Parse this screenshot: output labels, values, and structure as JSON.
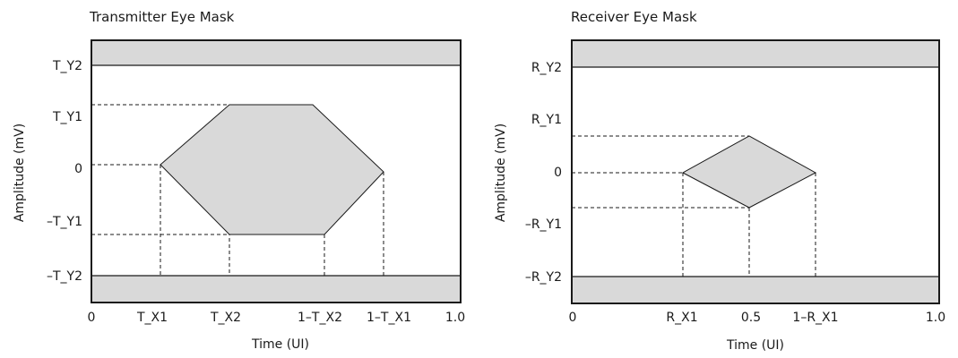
{
  "colors": {
    "mask_fill": "#d9d9d9",
    "line": "#1a1a1a",
    "background": "#ffffff"
  },
  "transmitter": {
    "title": "Transmitter Eye Mask",
    "xlabel": "Time (UI)",
    "ylabel": "Amplitude (mV)",
    "y_ticks": [
      "T_Y2",
      "T_Y1",
      "0",
      "–T_Y1",
      "–T_Y2"
    ],
    "x_ticks": [
      "0",
      "T_X1",
      "T_X2",
      "1–T_X2",
      "1–T_X1",
      "1.0"
    ]
  },
  "receiver": {
    "title": "Receiver Eye Mask",
    "xlabel": "Time (UI)",
    "ylabel": "Amplitude (mV)",
    "y_ticks": [
      "R_Y2",
      "R_Y1",
      "0",
      "–R_Y1",
      "–R_Y2"
    ],
    "x_ticks": [
      "0",
      "R_X1",
      "0.5",
      "1–R_X1",
      "1.0"
    ]
  }
}
